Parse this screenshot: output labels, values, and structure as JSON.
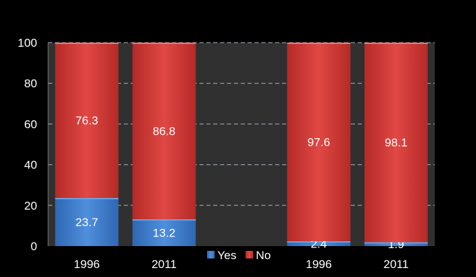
{
  "chart_data": {
    "type": "bar",
    "stacked": true,
    "categories": [
      "1996",
      "2011",
      "",
      "1996",
      "2011"
    ],
    "series": [
      {
        "name": "Yes",
        "values": [
          23.7,
          13.2,
          null,
          2.4,
          1.9
        ],
        "color": "#3f7fce"
      },
      {
        "name": "No",
        "values": [
          76.3,
          86.8,
          null,
          97.6,
          98.1
        ],
        "color": "#d23a36"
      }
    ],
    "ylim": [
      0,
      100
    ],
    "yticks": [
      "0",
      "20",
      "40",
      "60",
      "80",
      "100"
    ],
    "grid": true,
    "legend_position": "bottom-center",
    "background": "#000000",
    "plot_background": "#303030"
  }
}
